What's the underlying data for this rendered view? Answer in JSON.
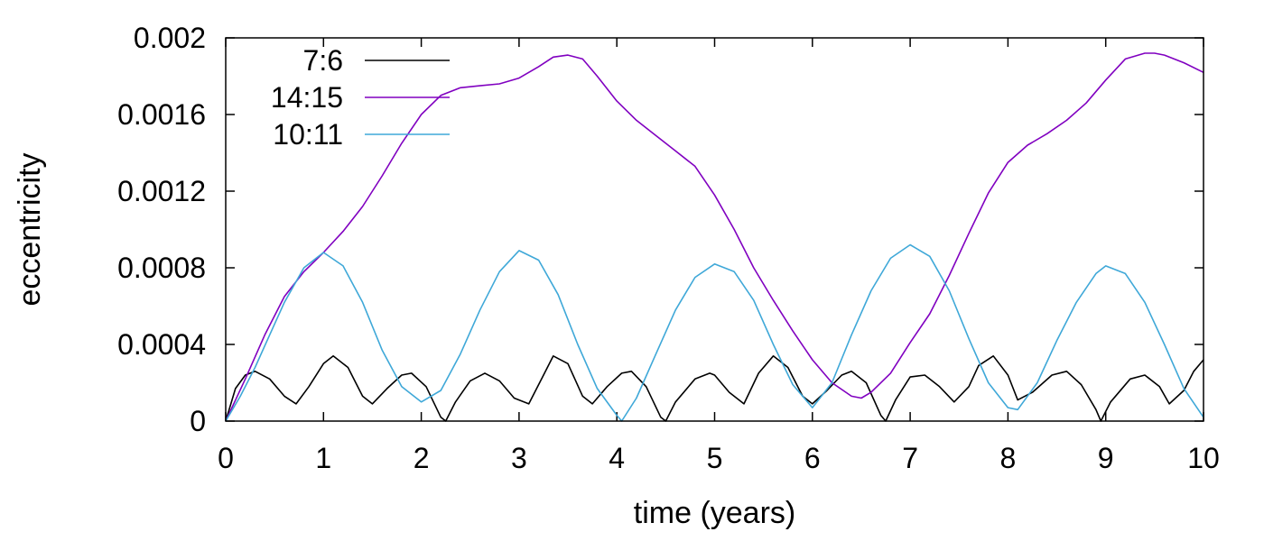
{
  "chart_data": {
    "type": "line",
    "title": "",
    "xlabel": "time (years)",
    "ylabel": "eccentricity",
    "xlim": [
      0,
      10
    ],
    "ylim": [
      0,
      0.002
    ],
    "x_ticks": [
      0,
      1,
      2,
      3,
      4,
      5,
      6,
      7,
      8,
      9,
      10
    ],
    "x_tick_labels": [
      "0",
      "1",
      "2",
      "3",
      "4",
      "5",
      "6",
      "7",
      "8",
      "9",
      "10"
    ],
    "y_ticks": [
      0,
      0.0004,
      0.0008,
      0.0012,
      0.0016,
      0.002
    ],
    "y_tick_labels": [
      "0",
      "0.0004",
      "0.0008",
      "0.0012",
      "0.0016",
      "0.002"
    ],
    "grid": false,
    "legend_position": "top-left",
    "series": [
      {
        "name": "7:6",
        "color": "#000000",
        "x": [
          0,
          0.1,
          0.2,
          0.3,
          0.45,
          0.6,
          0.72,
          0.85,
          1.0,
          1.1,
          1.25,
          1.4,
          1.5,
          1.65,
          1.8,
          1.9,
          2.05,
          2.2,
          2.25,
          2.35,
          2.5,
          2.65,
          2.8,
          2.95,
          3.1,
          3.25,
          3.35,
          3.5,
          3.65,
          3.75,
          3.9,
          4.05,
          4.15,
          4.3,
          4.45,
          4.5,
          4.6,
          4.8,
          4.95,
          5.0,
          5.15,
          5.3,
          5.45,
          5.6,
          5.75,
          5.9,
          6.0,
          6.15,
          6.3,
          6.4,
          6.55,
          6.7,
          6.75,
          6.85,
          7.0,
          7.15,
          7.3,
          7.45,
          7.6,
          7.7,
          7.85,
          8.0,
          8.1,
          8.25,
          8.45,
          8.6,
          8.75,
          8.9,
          8.95,
          9.05,
          9.25,
          9.4,
          9.55,
          9.65,
          9.8,
          9.9,
          10.0
        ],
        "values": [
          0.0,
          0.00017,
          0.00024,
          0.00026,
          0.00022,
          0.00013,
          9e-05,
          0.00018,
          0.0003,
          0.00034,
          0.00028,
          0.00013,
          9e-05,
          0.00017,
          0.00024,
          0.00025,
          0.00018,
          2e-05,
          0.0,
          0.0001,
          0.00021,
          0.00025,
          0.00021,
          0.00012,
          9e-05,
          0.00024,
          0.00034,
          0.0003,
          0.00013,
          9e-05,
          0.00018,
          0.00025,
          0.00026,
          0.00018,
          2e-05,
          0.0,
          0.0001,
          0.00022,
          0.00025,
          0.00024,
          0.00015,
          9e-05,
          0.00025,
          0.00034,
          0.00028,
          0.00013,
          9e-05,
          0.00016,
          0.00024,
          0.00026,
          0.0002,
          3e-05,
          0.0,
          0.00011,
          0.00023,
          0.00024,
          0.00018,
          0.0001,
          0.00018,
          0.00029,
          0.00034,
          0.00024,
          0.00011,
          0.00015,
          0.00024,
          0.00026,
          0.00019,
          6e-05,
          0.0,
          0.0001,
          0.00022,
          0.00024,
          0.00018,
          9e-05,
          0.00016,
          0.00026,
          0.00032
        ]
      },
      {
        "name": "14:15",
        "color": "#8000c0",
        "x": [
          0,
          0.2,
          0.4,
          0.6,
          0.8,
          1.0,
          1.2,
          1.4,
          1.6,
          1.8,
          2.0,
          2.2,
          2.4,
          2.6,
          2.8,
          3.0,
          3.2,
          3.35,
          3.5,
          3.65,
          3.8,
          4.0,
          4.2,
          4.4,
          4.6,
          4.8,
          5.0,
          5.2,
          5.4,
          5.6,
          5.8,
          6.0,
          6.2,
          6.4,
          6.5,
          6.6,
          6.8,
          7.0,
          7.2,
          7.4,
          7.6,
          7.8,
          8.0,
          8.2,
          8.4,
          8.6,
          8.8,
          9.0,
          9.2,
          9.4,
          9.5,
          9.6,
          9.8,
          10.0
        ],
        "values": [
          0.0,
          0.00022,
          0.00045,
          0.00065,
          0.00078,
          0.00088,
          0.00099,
          0.00112,
          0.00128,
          0.00145,
          0.0016,
          0.0017,
          0.00174,
          0.00175,
          0.00176,
          0.00179,
          0.00185,
          0.0019,
          0.00191,
          0.00189,
          0.0018,
          0.00167,
          0.00157,
          0.00149,
          0.00141,
          0.00133,
          0.00118,
          0.001,
          0.0008,
          0.00063,
          0.00047,
          0.00032,
          0.0002,
          0.00013,
          0.00012,
          0.00015,
          0.00025,
          0.00041,
          0.00056,
          0.00076,
          0.00098,
          0.00119,
          0.00135,
          0.00144,
          0.0015,
          0.00157,
          0.00166,
          0.00178,
          0.00189,
          0.00192,
          0.00192,
          0.00191,
          0.00187,
          0.00182
        ]
      },
      {
        "name": "10:11",
        "color": "#3fa8d8",
        "x": [
          0,
          0.15,
          0.3,
          0.45,
          0.6,
          0.8,
          1.0,
          1.2,
          1.4,
          1.6,
          1.8,
          2.0,
          2.2,
          2.4,
          2.6,
          2.8,
          3.0,
          3.2,
          3.4,
          3.6,
          3.8,
          4.0,
          4.05,
          4.2,
          4.4,
          4.6,
          4.8,
          5.0,
          5.2,
          5.4,
          5.6,
          5.8,
          6.0,
          6.2,
          6.4,
          6.6,
          6.8,
          7.0,
          7.2,
          7.4,
          7.6,
          7.8,
          8.0,
          8.1,
          8.3,
          8.5,
          8.7,
          8.9,
          9.0,
          9.2,
          9.4,
          9.6,
          9.8,
          10.0
        ],
        "values": [
          0.0,
          0.00013,
          0.00028,
          0.00045,
          0.00062,
          0.0008,
          0.00088,
          0.00081,
          0.00062,
          0.00037,
          0.00018,
          0.0001,
          0.00016,
          0.00035,
          0.00058,
          0.00078,
          0.00089,
          0.00084,
          0.00066,
          0.0004,
          0.00017,
          3e-05,
          0.0,
          0.00012,
          0.00035,
          0.00058,
          0.00075,
          0.00082,
          0.00078,
          0.00063,
          0.0004,
          0.00019,
          7e-05,
          0.0002,
          0.00045,
          0.00068,
          0.00085,
          0.00092,
          0.00086,
          0.00068,
          0.00043,
          0.0002,
          7e-05,
          6e-05,
          0.0002,
          0.00042,
          0.00062,
          0.00077,
          0.00081,
          0.00077,
          0.00062,
          0.0004,
          0.00017,
          2e-05
        ]
      }
    ]
  }
}
